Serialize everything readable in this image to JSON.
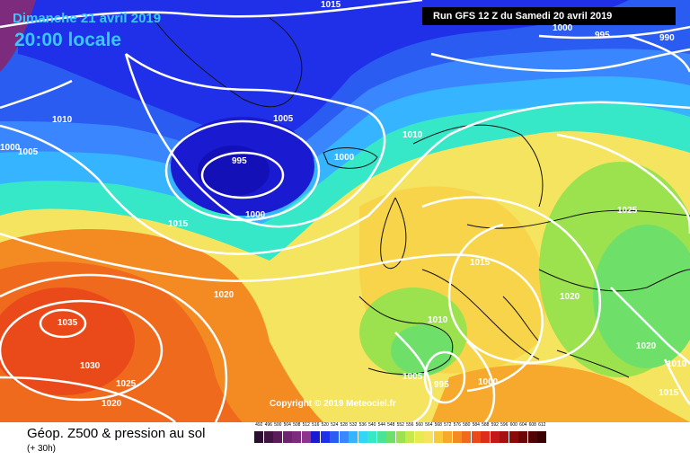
{
  "header": {
    "valid_date": "Dimanche 21 avril 2019",
    "local_time": "20:00 locale",
    "run_info": "Run GFS 12 Z du Samedi 20 avril 2019",
    "copyright": "Copyright © 2019 Meteociel.fr"
  },
  "footer": {
    "product": "Géop. Z500 & pression au sol",
    "lead_time": "(+ 30h)"
  },
  "color_scale": {
    "values": [
      "492",
      "496",
      "500",
      "504",
      "508",
      "512",
      "516",
      "520",
      "524",
      "528",
      "532",
      "536",
      "540",
      "544",
      "548",
      "552",
      "556",
      "560",
      "564",
      "568",
      "572",
      "576",
      "580",
      "584",
      "588",
      "592",
      "596",
      "600",
      "604",
      "608",
      "612"
    ],
    "colors": [
      "#2b0f2e",
      "#401540",
      "#5a1d5a",
      "#6e246e",
      "#7d2c7d",
      "#8d358d",
      "#1a1ad0",
      "#2030e8",
      "#2a5cf2",
      "#3a86ff",
      "#36b4ff",
      "#33d6f4",
      "#36e8c8",
      "#4be39a",
      "#6ee06a",
      "#9be24e",
      "#c6e84a",
      "#e6ec50",
      "#f5e460",
      "#f8c93a",
      "#f6a92c",
      "#f48a22",
      "#f06a1e",
      "#ea4a1a",
      "#dc2e1a",
      "#c41818",
      "#a61010",
      "#8a0a0a",
      "#6c0606",
      "#520404",
      "#3a0202"
    ]
  },
  "isobar_labels": [
    {
      "text": "1015",
      "id": "top-center"
    },
    {
      "text": "1000",
      "id": "top-right-1"
    },
    {
      "text": "995",
      "id": "top-right-2"
    },
    {
      "text": "990",
      "id": "top-right-3"
    },
    {
      "text": "1010",
      "id": "west-1"
    },
    {
      "text": "1005",
      "id": "west-2"
    },
    {
      "text": "1000",
      "id": "west-3"
    },
    {
      "text": "1005",
      "id": "iceland-1"
    },
    {
      "text": "995",
      "id": "low-center"
    },
    {
      "text": "1000",
      "id": "low-ring"
    },
    {
      "text": "1000",
      "id": "iceland-2"
    },
    {
      "text": "1010",
      "id": "norway"
    },
    {
      "text": "1015",
      "id": "atlantic-1"
    },
    {
      "text": "1020",
      "id": "atlantic-2"
    },
    {
      "text": "1035",
      "id": "azores-high"
    },
    {
      "text": "1030",
      "id": "azores-2"
    },
    {
      "text": "1025",
      "id": "azores-3"
    },
    {
      "text": "1020",
      "id": "azores-4"
    },
    {
      "text": "1025",
      "id": "east-1"
    },
    {
      "text": "1015",
      "id": "central"
    },
    {
      "text": "1020",
      "id": "balkans"
    },
    {
      "text": "1010",
      "id": "spain"
    },
    {
      "text": "1005",
      "id": "med-1"
    },
    {
      "text": "995",
      "id": "med-low"
    },
    {
      "text": "1000",
      "id": "med-2"
    },
    {
      "text": "1020",
      "id": "east-2"
    },
    {
      "text": "1010",
      "id": "east-3"
    },
    {
      "text": "1015",
      "id": "east-4"
    }
  ]
}
